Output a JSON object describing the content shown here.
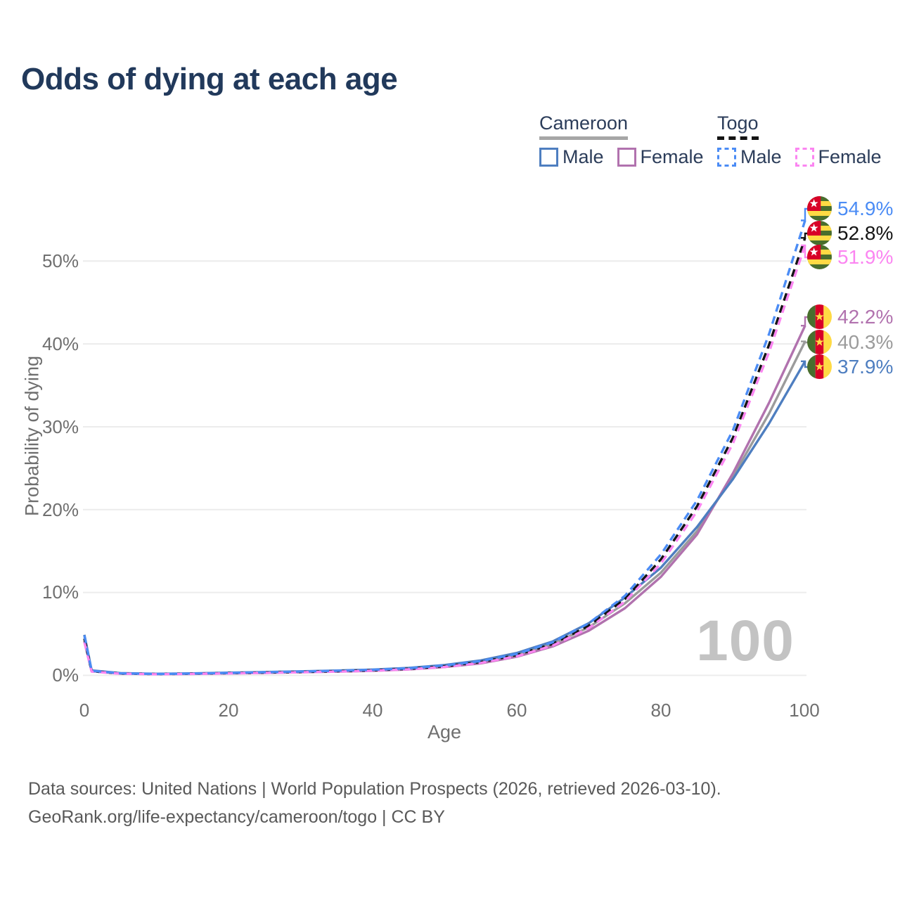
{
  "title": "Odds of dying at each age",
  "legend": {
    "groups": [
      {
        "country": "Cameroon",
        "style": "solid",
        "underline_color": "#a6a6a6",
        "items": [
          {
            "label": "Male",
            "color": "#4e7ec0"
          },
          {
            "label": "Female",
            "color": "#b172ae"
          }
        ]
      },
      {
        "country": "Togo",
        "style": "dashed",
        "underline_color": "#141414",
        "items": [
          {
            "label": "Male",
            "color": "#4b8cf5"
          },
          {
            "label": "Female",
            "color": "#fb85f1"
          }
        ]
      }
    ]
  },
  "axes": {
    "x": {
      "label": "Age",
      "ticks": [
        "0",
        "20",
        "40",
        "60",
        "80",
        "100"
      ],
      "range": [
        0,
        100
      ]
    },
    "y": {
      "label": "Probability of dying",
      "ticks": [
        "0%",
        "10%",
        "20%",
        "30%",
        "40%",
        "50%"
      ],
      "range_pct": [
        0,
        57
      ],
      "grid": true
    }
  },
  "watermark": "100",
  "footer": {
    "line1": "Data sources: United Nations | World Population Prospects (2026, retrieved 2026-03-10).",
    "line2": "GeoRank.org/life-expectancy/cameroon/togo | CC BY"
  },
  "chart_data": {
    "type": "line",
    "title": "Odds of dying at each age",
    "xlabel": "Age",
    "ylabel": "Probability of dying",
    "unit": "percent",
    "grid": "horizontal",
    "legend_position": "top-right",
    "x": [
      0,
      1,
      5,
      10,
      15,
      20,
      25,
      30,
      35,
      40,
      45,
      50,
      55,
      60,
      65,
      70,
      75,
      80,
      85,
      90,
      95,
      100
    ],
    "series": [
      {
        "name": "Cameroon Both sexes",
        "country": "Cameroon",
        "sex": "Both",
        "color": "#9b9b9b",
        "dash": false,
        "end_label": "40.3%",
        "values": [
          4.5,
          0.55,
          0.24,
          0.17,
          0.21,
          0.28,
          0.35,
          0.42,
          0.51,
          0.62,
          0.8,
          1.1,
          1.6,
          2.45,
          3.8,
          5.8,
          8.7,
          12.4,
          17.4,
          24.0,
          31.6,
          40.3
        ]
      },
      {
        "name": "Cameroon Female",
        "country": "Cameroon",
        "sex": "Female",
        "color": "#b172ae",
        "dash": false,
        "end_label": "42.2%",
        "values": [
          4.1,
          0.5,
          0.21,
          0.15,
          0.18,
          0.24,
          0.3,
          0.37,
          0.45,
          0.55,
          0.72,
          1.0,
          1.45,
          2.25,
          3.5,
          5.4,
          8.1,
          11.9,
          17.0,
          24.4,
          32.9,
          42.2
        ]
      },
      {
        "name": "Cameroon Male",
        "country": "Cameroon",
        "sex": "Male",
        "color": "#4e7ec0",
        "dash": false,
        "end_label": "37.9%",
        "values": [
          4.9,
          0.6,
          0.27,
          0.19,
          0.24,
          0.32,
          0.4,
          0.48,
          0.58,
          0.7,
          0.9,
          1.25,
          1.8,
          2.7,
          4.1,
          6.3,
          9.4,
          13.0,
          17.9,
          23.7,
          30.4,
          37.9
        ]
      },
      {
        "name": "Togo Both sexes",
        "country": "Togo",
        "sex": "Both",
        "color": "#141414",
        "dash": true,
        "end_label": "52.8%",
        "values": [
          4.4,
          0.5,
          0.22,
          0.16,
          0.2,
          0.27,
          0.34,
          0.41,
          0.5,
          0.61,
          0.79,
          1.1,
          1.6,
          2.45,
          3.8,
          6.0,
          9.2,
          14.0,
          20.4,
          28.7,
          39.9,
          52.8
        ]
      },
      {
        "name": "Togo Female",
        "country": "Togo",
        "sex": "Female",
        "color": "#fb85f1",
        "dash": true,
        "end_label": "51.9%",
        "values": [
          4.0,
          0.45,
          0.2,
          0.14,
          0.18,
          0.24,
          0.3,
          0.37,
          0.45,
          0.56,
          0.73,
          1.02,
          1.5,
          2.3,
          3.6,
          5.7,
          8.9,
          13.5,
          19.8,
          28.0,
          39.0,
          51.9
        ]
      },
      {
        "name": "Togo Male",
        "country": "Togo",
        "sex": "Male",
        "color": "#4b8cf5",
        "dash": true,
        "end_label": "54.9%",
        "values": [
          4.8,
          0.55,
          0.25,
          0.17,
          0.22,
          0.3,
          0.38,
          0.46,
          0.56,
          0.67,
          0.86,
          1.2,
          1.72,
          2.6,
          4.0,
          6.3,
          9.6,
          14.6,
          21.1,
          29.6,
          41.2,
          54.9
        ]
      }
    ]
  }
}
